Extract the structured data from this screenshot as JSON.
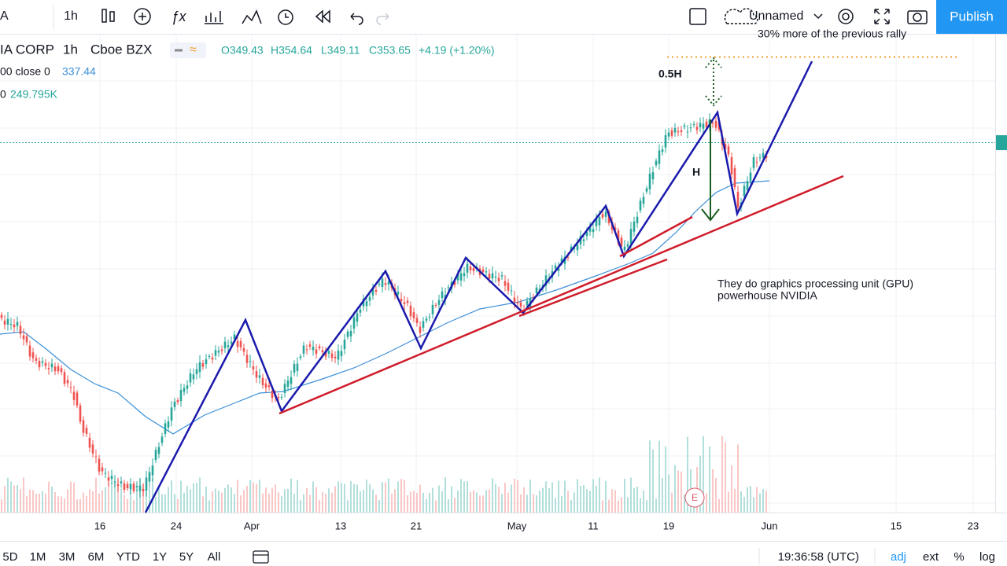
{
  "toolbar": {
    "symbol_tail": "A",
    "interval": "1h",
    "layout_name": "Unnamed",
    "publish": "Publish"
  },
  "legend": {
    "symbol": "IA CORP",
    "interval": "1h",
    "exchange": "Cboe BZX",
    "open": "O349.43",
    "high": "H354.64",
    "low": "L349.11",
    "close": "C353.65",
    "change": "+4.19 (+1.20%)",
    "ma_label": "00 close 0",
    "ma_value": "337.44",
    "vol_label": "0",
    "vol_value": "249.795K"
  },
  "annotations": {
    "top_note": "30% more of the previous rally",
    "half_height": "0.5H",
    "height": "H",
    "description_1": "They do graphics processing unit (GPU)",
    "description_2": "powerhouse NVIDIA",
    "earnings": "E"
  },
  "x_axis": {
    "labels": [
      "16",
      "24",
      "Apr",
      "13",
      "21",
      "May",
      "11",
      "19",
      "Jun",
      "15",
      "23"
    ]
  },
  "bottom_bar": {
    "ranges": [
      "5D",
      "1M",
      "3M",
      "6M",
      "YTD",
      "1Y",
      "5Y",
      "All"
    ],
    "clock": "19:36:58 (UTC)",
    "options": [
      "adj",
      "ext",
      "%",
      "log"
    ]
  }
}
